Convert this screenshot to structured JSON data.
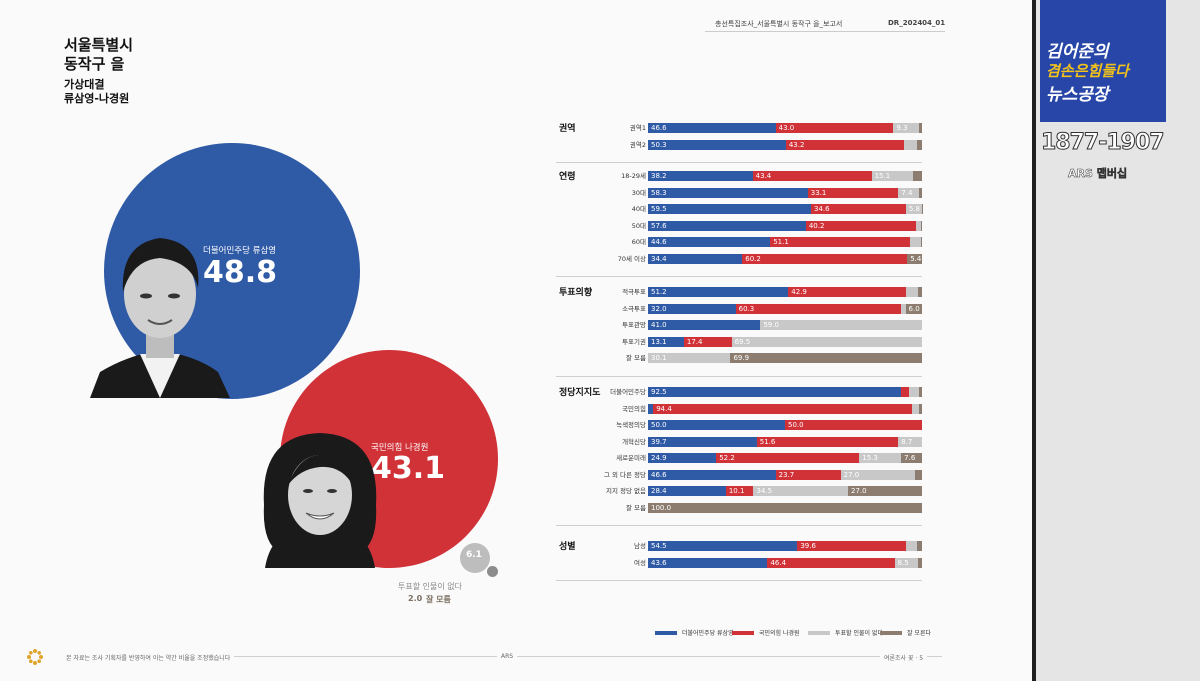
{
  "document": {
    "header_title": "총선특집조사_서울특별시 동작구 을_보고서",
    "header_code": "DR_202404_01",
    "region_line1": "서울특별시",
    "region_line2": "동작구 을",
    "matchup_line1": "가상대결",
    "matchup_line2": "류삼영-나경원",
    "footer_note": "본 자료는 조사 기획자를 반영하여 이는 약간 비율을 조정했습니다",
    "footer_center": "ARS",
    "footer_right": "여론조사 꽃 · 5"
  },
  "candidates": {
    "blue": {
      "label": "더불어민주당 류삼영",
      "value": "48.8"
    },
    "red": {
      "label": "국민의힘 나경원",
      "value": "43.1"
    },
    "none": {
      "value": "6.1",
      "label": "투표할 인물이 없다"
    },
    "unsure": {
      "value": "2.0",
      "label": "잘 모름"
    }
  },
  "colors": {
    "blue": "#2f5aa6",
    "red": "#d03238",
    "grey": "#c8c8c8",
    "brown": "#8c7d70"
  },
  "chart_data": {
    "type": "bar",
    "stacked": true,
    "orientation": "horizontal",
    "series_names": [
      "더불어민주당 류삼영",
      "국민의힘 나경원",
      "투표할 인물이 없다",
      "잘 모른다"
    ],
    "groups": [
      {
        "name": "권역",
        "rows": [
          {
            "label": "권역1",
            "values": [
              46.6,
              43.0,
              9.3,
              1.1
            ]
          },
          {
            "label": "권역2",
            "values": [
              50.3,
              43.2,
              4.5,
              2.0
            ]
          }
        ]
      },
      {
        "name": "연령",
        "rows": [
          {
            "label": "18-29세",
            "values": [
              38.2,
              43.4,
              15.1,
              3.3
            ]
          },
          {
            "label": "30대",
            "values": [
              58.3,
              33.1,
              7.4,
              1.2
            ]
          },
          {
            "label": "40대",
            "values": [
              59.5,
              34.6,
              5.8,
              0.1
            ]
          },
          {
            "label": "50대",
            "values": [
              57.6,
              40.2,
              1.8,
              0.4
            ]
          },
          {
            "label": "60대",
            "values": [
              44.6,
              51.1,
              3.8,
              0.5
            ]
          },
          {
            "label": "70세 이상",
            "values": [
              34.4,
              60.2,
              0,
              5.4
            ]
          }
        ]
      },
      {
        "name": "투표의향",
        "rows": [
          {
            "label": "적극투표",
            "values": [
              51.2,
              42.9,
              4.6,
              1.3
            ]
          },
          {
            "label": "소극투표",
            "values": [
              32.0,
              60.3,
              1.7,
              6.0
            ]
          },
          {
            "label": "투표관망",
            "values": [
              41.0,
              0,
              59.0,
              0
            ]
          },
          {
            "label": "투표기권",
            "values": [
              13.1,
              17.4,
              69.5,
              0
            ]
          },
          {
            "label": "잘 모름",
            "values": [
              0,
              0,
              30.1,
              69.9
            ]
          }
        ]
      },
      {
        "name": "정당지지도",
        "rows": [
          {
            "label": "더불어민주당",
            "values": [
              92.5,
              2.6,
              3.9,
              1.0
            ]
          },
          {
            "label": "국민의힘",
            "values": [
              1.9,
              94.4,
              2.6,
              1.1
            ]
          },
          {
            "label": "녹색정의당",
            "values": [
              50.0,
              50.0,
              0,
              0
            ]
          },
          {
            "label": "개혁신당",
            "values": [
              39.7,
              51.6,
              8.7,
              0
            ]
          },
          {
            "label": "새로운미래",
            "values": [
              24.9,
              52.2,
              15.3,
              7.6
            ]
          },
          {
            "label": "그 외 다른 정당",
            "values": [
              46.6,
              23.7,
              27.0,
              2.7
            ]
          },
          {
            "label": "지지 정당 없음",
            "values": [
              28.4,
              10.1,
              34.5,
              27.0
            ]
          },
          {
            "label": "잘 모름",
            "values": [
              0,
              0,
              0,
              100.0
            ]
          }
        ]
      },
      {
        "name": "성별",
        "rows": [
          {
            "label": "남성",
            "values": [
              54.5,
              39.6,
              4.1,
              1.8
            ]
          },
          {
            "label": "여성",
            "values": [
              43.6,
              46.4,
              8.5,
              1.5
            ]
          }
        ]
      }
    ],
    "shown_labels": [
      [
        "46.6",
        "43.0",
        "9.3",
        ""
      ],
      [
        "50.3",
        "43.2",
        "",
        ""
      ],
      [
        "38.2",
        "43.4",
        "15.1",
        ""
      ],
      [
        "58.3",
        "33.1",
        "7.4",
        ""
      ],
      [
        "59.5",
        "34.6",
        "5.8",
        ""
      ],
      [
        "57.6",
        "40.2",
        "",
        ""
      ],
      [
        "44.6",
        "51.1",
        "",
        ""
      ],
      [
        "34.4",
        "60.2",
        "",
        "5.4"
      ],
      [
        "51.2",
        "42.9",
        "",
        ""
      ],
      [
        "32.0",
        "60.3",
        "",
        "6.0"
      ],
      [
        "41.0",
        "",
        "59.0",
        ""
      ],
      [
        "13.1",
        "17.4",
        "69.5",
        ""
      ],
      [
        "",
        "",
        "30.1",
        "69.9"
      ],
      [
        "92.5",
        "",
        "",
        ""
      ],
      [
        "",
        "94.4",
        "",
        ""
      ],
      [
        "50.0",
        "50.0",
        "",
        ""
      ],
      [
        "39.7",
        "51.6",
        "8.7",
        ""
      ],
      [
        "24.9",
        "52.2",
        "15.3",
        "7.6"
      ],
      [
        "46.6",
        "23.7",
        "27.0",
        ""
      ],
      [
        "28.4",
        "10.1",
        "34.5",
        "27.0"
      ],
      [
        "",
        "",
        "",
        "100.0"
      ],
      [
        "54.5",
        "39.6",
        "",
        ""
      ],
      [
        "43.6",
        "46.4",
        "8.5",
        ""
      ]
    ],
    "legend": [
      "더불어민주당 류삼영",
      "국민의힘 나경원",
      "투표할 인물이 없다",
      "잘 모른다"
    ]
  },
  "overlay": {
    "logo_line1": "김어준의",
    "logo_line2": "겸손은힘들다",
    "logo_line3": "뉴스공장",
    "phone": "1877-1907",
    "tag": "ARS 맵버십"
  }
}
